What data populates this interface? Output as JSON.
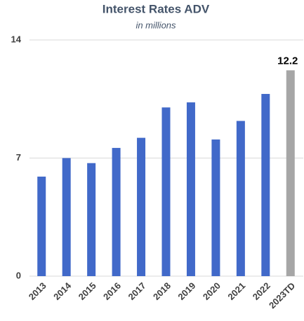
{
  "chart_data": {
    "type": "bar",
    "title": "Interest Rates ADV",
    "subtitle": "in millions",
    "categories": [
      "2013",
      "2014",
      "2015",
      "2016",
      "2017",
      "2018",
      "2019",
      "2020",
      "2021",
      "2022",
      "2023TD"
    ],
    "values": [
      5.9,
      7.0,
      6.7,
      7.6,
      8.2,
      10.0,
      10.3,
      8.1,
      9.2,
      10.8,
      12.2
    ],
    "colors": [
      "#4169c9",
      "#4169c9",
      "#4169c9",
      "#4169c9",
      "#4169c9",
      "#4169c9",
      "#4169c9",
      "#4169c9",
      "#4169c9",
      "#4169c9",
      "#a6a6a6"
    ],
    "show_value_label": [
      false,
      false,
      false,
      false,
      false,
      false,
      false,
      false,
      false,
      false,
      true
    ],
    "ylim": [
      0,
      14
    ],
    "yticks": [
      0,
      7,
      14
    ],
    "grid": true
  }
}
